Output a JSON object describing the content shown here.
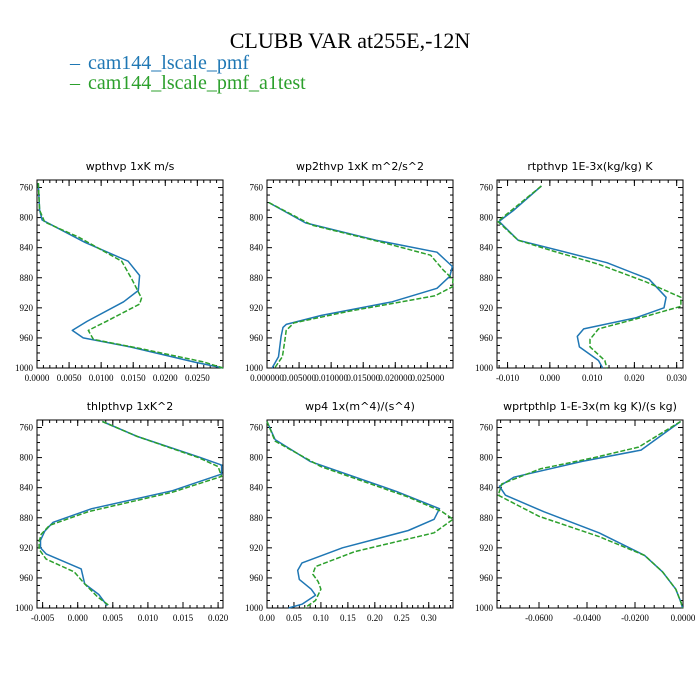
{
  "title": "CLUBB VAR at255E,-12N",
  "legend": [
    {
      "label": "cam144_lscale_pmf",
      "color": "#1f77b4",
      "dash": "solid"
    },
    {
      "label": "cam144_lscale_pmf_a1test",
      "color": "#2ca02c",
      "dash": "dashed"
    }
  ],
  "chart_data": [
    {
      "type": "line",
      "title": "wpthvp  1xK m/s",
      "xlim": [
        0,
        0.029
      ],
      "ylim": [
        1000,
        750
      ],
      "x_ticks": [
        "0.0000",
        "0.0050",
        "0.0100",
        "0.0150",
        "0.0200",
        "0.0250"
      ],
      "x_tick_values": [
        0,
        0.005,
        0.01,
        0.015,
        0.02,
        0.025
      ],
      "y_ticks": [
        760,
        800,
        840,
        880,
        920,
        960,
        1000
      ],
      "series": [
        {
          "y": [
            754,
            790,
            803,
            833,
            858,
            877,
            897,
            912,
            938,
            950,
            960,
            972,
            992,
            1000
          ],
          "x": [
            0.0002,
            0.0004,
            0.0008,
            0.0075,
            0.0142,
            0.016,
            0.0158,
            0.0135,
            0.0078,
            0.0055,
            0.0072,
            0.0145,
            0.0245,
            0.029
          ]
        },
        {
          "y": [
            754,
            790,
            806,
            826,
            858,
            882,
            907,
            915,
            938,
            950,
            962,
            974,
            992,
            1000
          ],
          "x": [
            0.0002,
            0.0004,
            0.0012,
            0.0065,
            0.0132,
            0.0148,
            0.0163,
            0.016,
            0.0108,
            0.008,
            0.0088,
            0.016,
            0.026,
            0.029
          ]
        }
      ]
    },
    {
      "type": "line",
      "title": "wp2thvp  1xK m^2/s^2",
      "xlim": [
        0,
        0.029
      ],
      "ylim": [
        1000,
        750
      ],
      "x_ticks": [
        "0.000000",
        "0.005000",
        "0.010000",
        "0.015000",
        "0.020000",
        "0.025000"
      ],
      "x_tick_values": [
        0,
        0.005,
        0.01,
        0.015,
        0.02,
        0.025
      ],
      "y_ticks": [
        760,
        800,
        840,
        880,
        920,
        960,
        1000
      ],
      "series": [
        {
          "y": [
            780,
            807,
            830,
            846,
            865,
            878,
            894,
            912,
            930,
            942,
            946,
            958,
            985,
            1000
          ],
          "x": [
            0.0003,
            0.006,
            0.017,
            0.0265,
            0.0289,
            0.0285,
            0.0265,
            0.0195,
            0.0085,
            0.003,
            0.0025,
            0.0022,
            0.0018,
            0.0008
          ]
        },
        {
          "y": [
            780,
            810,
            833,
            850,
            870,
            882,
            892,
            904,
            925,
            940,
            950,
            962,
            985,
            1000
          ],
          "x": [
            0.0003,
            0.007,
            0.018,
            0.0255,
            0.0275,
            0.029,
            0.0289,
            0.0262,
            0.0125,
            0.0042,
            0.003,
            0.0028,
            0.0024,
            0.0012
          ]
        }
      ]
    },
    {
      "type": "line",
      "title": "rtpthvp  1E-3x(kg/kg) K",
      "xlim": [
        -0.0125,
        0.0315
      ],
      "ylim": [
        1000,
        750
      ],
      "x_ticks": [
        "-0.010",
        "0.000",
        "0.010",
        "0.020",
        "0.030"
      ],
      "x_tick_values": [
        -0.01,
        0,
        0.01,
        0.02,
        0.03
      ],
      "y_ticks": [
        760,
        800,
        840,
        880,
        920,
        960,
        1000
      ],
      "series": [
        {
          "y": [
            758,
            790,
            805,
            830,
            845,
            860,
            882,
            906,
            920,
            933,
            948,
            958,
            972,
            990,
            1000
          ],
          "x": [
            -0.002,
            -0.0085,
            -0.012,
            -0.0075,
            0.003,
            0.0135,
            0.0235,
            0.0275,
            0.027,
            0.0205,
            0.008,
            0.0065,
            0.007,
            0.0115,
            0.0125
          ]
        },
        {
          "y": [
            758,
            790,
            805,
            830,
            845,
            862,
            885,
            906,
            918,
            930,
            948,
            962,
            972,
            990,
            1000
          ],
          "x": [
            -0.002,
            -0.009,
            -0.0123,
            -0.0075,
            0.001,
            0.0115,
            0.0225,
            0.031,
            0.031,
            0.0235,
            0.0115,
            0.0095,
            0.0095,
            0.013,
            0.0135
          ]
        }
      ]
    },
    {
      "type": "line",
      "title": "thlpthvp  1xK^2",
      "xlim": [
        -0.0058,
        0.0207
      ],
      "ylim": [
        1000,
        750
      ],
      "x_ticks": [
        "-0.005",
        "0.000",
        "0.005",
        "0.010",
        "0.015",
        "0.020"
      ],
      "x_tick_values": [
        -0.005,
        0,
        0.005,
        0.01,
        0.015,
        0.02
      ],
      "y_ticks": [
        760,
        800,
        840,
        880,
        920,
        960,
        1000
      ],
      "series": [
        {
          "y": [
            752,
            772,
            800,
            810,
            822,
            844,
            868,
            886,
            898,
            910,
            920,
            928,
            948,
            968,
            982,
            997
          ],
          "x": [
            0.0035,
            0.0085,
            0.0175,
            0.0205,
            0.0205,
            0.0135,
            0.002,
            -0.0035,
            -0.0047,
            -0.0053,
            -0.0053,
            -0.0045,
            0.0005,
            0.001,
            0.003,
            0.0042
          ]
        },
        {
          "y": [
            752,
            772,
            800,
            812,
            825,
            846,
            872,
            890,
            902,
            912,
            922,
            935,
            952,
            968,
            985,
            997
          ],
          "x": [
            0.0035,
            0.0085,
            0.0172,
            0.02,
            0.0205,
            0.0135,
            0.0015,
            -0.004,
            -0.0052,
            -0.0055,
            -0.0055,
            -0.0045,
            -0.0005,
            0.001,
            0.0028,
            0.0045
          ]
        }
      ]
    },
    {
      "type": "line",
      "title": "wp4  1x(m^4)/(s^4)",
      "xlim": [
        0,
        0.345
      ],
      "ylim": [
        1000,
        750
      ],
      "x_ticks": [
        "0.00",
        "0.05",
        "0.10",
        "0.15",
        "0.20",
        "0.25",
        "0.30"
      ],
      "x_tick_values": [
        0,
        0.05,
        0.1,
        0.15,
        0.2,
        0.25,
        0.3
      ],
      "y_ticks": [
        760,
        800,
        840,
        880,
        920,
        960,
        1000
      ],
      "series": [
        {
          "y": [
            752,
            776,
            805,
            845,
            868,
            882,
            897,
            920,
            940,
            950,
            962,
            975,
            983,
            995,
            1000
          ],
          "x": [
            0.0,
            0.015,
            0.08,
            0.24,
            0.32,
            0.31,
            0.262,
            0.14,
            0.065,
            0.057,
            0.06,
            0.082,
            0.09,
            0.065,
            0.04
          ]
        },
        {
          "y": [
            752,
            778,
            812,
            852,
            872,
            882,
            900,
            925,
            945,
            955,
            965,
            975,
            990,
            1000
          ],
          "x": [
            0.0,
            0.015,
            0.1,
            0.26,
            0.325,
            0.345,
            0.31,
            0.163,
            0.09,
            0.085,
            0.095,
            0.1,
            0.09,
            0.07
          ]
        }
      ]
    },
    {
      "type": "line",
      "title": "wprtpthlp  1-E-3x(m kg K)/(s kg)",
      "xlim": [
        -0.0775,
        0.0
      ],
      "ylim": [
        1000,
        750
      ],
      "x_ticks": [
        "-0.0600",
        "-0.0400",
        "-0.0200",
        "0.0000"
      ],
      "x_tick_values": [
        -0.06,
        -0.04,
        -0.02,
        0
      ],
      "y_ticks": [
        760,
        800,
        840,
        880,
        920,
        960,
        1000
      ],
      "series": [
        {
          "y": [
            752,
            790,
            805,
            826,
            838,
            850,
            872,
            900,
            930,
            952,
            975,
            993,
            1000
          ],
          "x": [
            -0.001,
            -0.0175,
            -0.042,
            -0.0705,
            -0.0765,
            -0.074,
            -0.058,
            -0.035,
            -0.016,
            -0.0085,
            -0.003,
            -0.0008,
            -0.0002
          ]
        },
        {
          "y": [
            752,
            786,
            800,
            815,
            835,
            850,
            878,
            905,
            930,
            952,
            975,
            993,
            1000
          ],
          "x": [
            -0.001,
            -0.0185,
            -0.037,
            -0.0595,
            -0.0755,
            -0.077,
            -0.06,
            -0.035,
            -0.016,
            -0.0085,
            -0.003,
            -0.0008,
            -0.0002
          ]
        }
      ]
    }
  ]
}
